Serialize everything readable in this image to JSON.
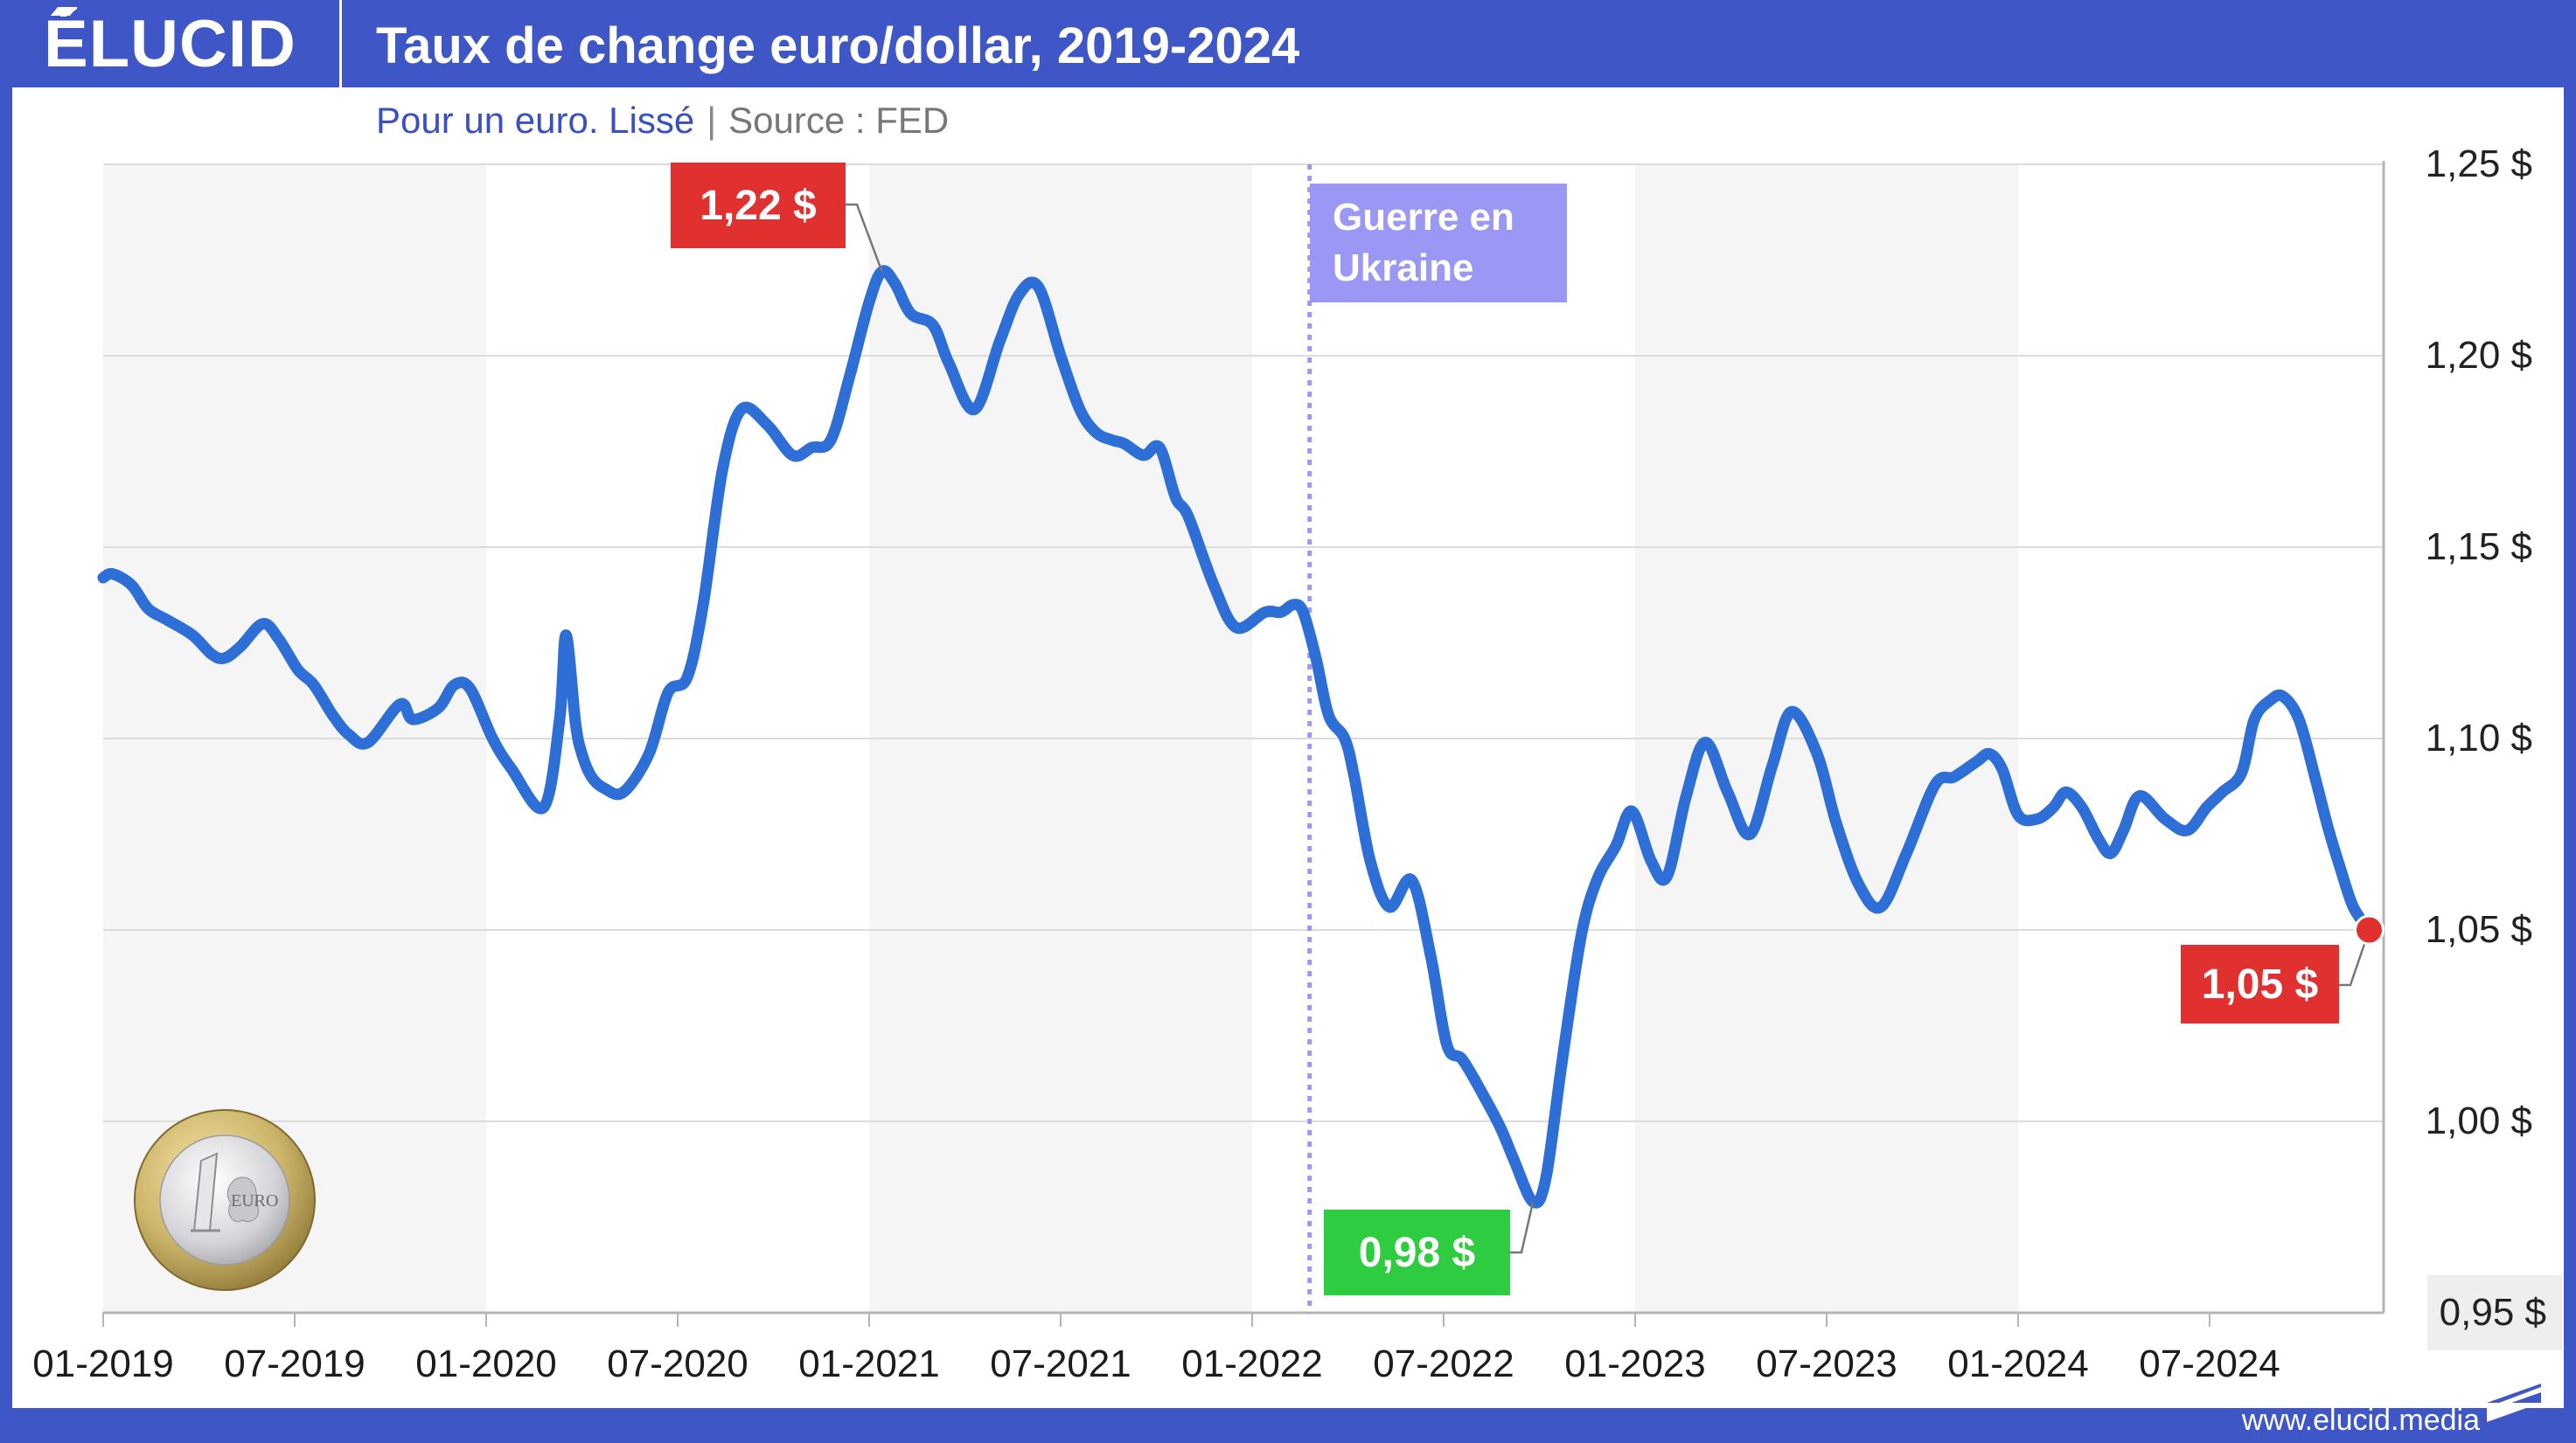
{
  "header": {
    "logo": "ÉLUCID",
    "title": "Taux de change euro/dollar, 2019-2024",
    "subtitle_main": "Pour un euro. Lissé",
    "subtitle_separator": "|",
    "subtitle_source": "Source : FED"
  },
  "footer": {
    "url": "www.elucid.media"
  },
  "colors": {
    "brand": "#3f57c6",
    "line": "#2d6fd6",
    "max_label": "#e03030",
    "min_label": "#2ecc40",
    "event_label": "#9b97f5",
    "band": "#f5f5f5"
  },
  "icons": {
    "coin": "euro-coin-icon",
    "logo_mark": "elucid-flag-icon"
  },
  "chart_data": {
    "type": "line",
    "title": "Taux de change euro/dollar, 2019-2024",
    "subtitle": "Pour un euro. Lissé | Source : FED",
    "xlabel": "",
    "ylabel": "",
    "x_unit": "months since 01-2019",
    "xlim": [
      0,
      71
    ],
    "ylim": [
      0.95,
      1.25
    ],
    "grid": true,
    "legend": "none",
    "x_ticks": [
      {
        "m": 0,
        "label": "01-2019"
      },
      {
        "m": 6,
        "label": "07-2019"
      },
      {
        "m": 12,
        "label": "01-2020"
      },
      {
        "m": 18,
        "label": "07-2020"
      },
      {
        "m": 24,
        "label": "01-2021"
      },
      {
        "m": 30,
        "label": "07-2021"
      },
      {
        "m": 36,
        "label": "01-2022"
      },
      {
        "m": 42,
        "label": "07-2022"
      },
      {
        "m": 48,
        "label": "01-2023"
      },
      {
        "m": 54,
        "label": "07-2023"
      },
      {
        "m": 60,
        "label": "01-2024"
      },
      {
        "m": 66,
        "label": "07-2024"
      }
    ],
    "y_ticks": [
      {
        "v": 1.25,
        "label": "1,25 $"
      },
      {
        "v": 1.2,
        "label": "1,20 $"
      },
      {
        "v": 1.15,
        "label": "1,15 $"
      },
      {
        "v": 1.1,
        "label": "1,10 $"
      },
      {
        "v": 1.05,
        "label": "1,05 $"
      },
      {
        "v": 1.0,
        "label": "1,00 $"
      },
      {
        "v": 0.95,
        "label": "0,95 $"
      }
    ],
    "series": [
      {
        "name": "EUR/USD",
        "x": [
          0,
          0.3,
          0.9,
          1.4,
          2.0,
          2.8,
          3.4,
          3.8,
          4.3,
          5.0,
          5.5,
          6.1,
          6.6,
          7.2,
          7.7,
          8.3,
          9.3,
          9.7,
          10.5,
          11.0,
          11.5,
          12.2,
          12.8,
          13.8,
          14.3,
          14.5,
          14.8,
          15.0,
          15.3,
          15.7,
          16.3,
          17.1,
          17.7,
          18.3,
          18.8,
          19.4,
          20.0,
          20.8,
          21.6,
          22.2,
          22.8,
          23.4,
          24.0,
          24.4,
          24.8,
          25.3,
          26.0,
          26.5,
          27.3,
          28.1,
          28.7,
          29.3,
          30.0,
          30.6,
          31.1,
          31.6,
          32.0,
          32.6,
          33.1,
          33.6,
          34.0,
          34.8,
          35.5,
          36.4,
          36.9,
          37.3,
          37.6,
          38.0,
          38.4,
          38.9,
          39.2,
          39.7,
          40.3,
          41.0,
          41.6,
          42.1,
          42.6,
          43.3,
          43.8,
          44.2,
          44.8,
          45.2,
          45.7,
          46.3,
          46.8,
          47.4,
          47.9,
          48.5,
          49.0,
          49.6,
          50.2,
          50.9,
          51.6,
          52.3,
          52.9,
          53.7,
          54.3,
          55.0,
          55.7,
          56.5,
          57.4,
          58.0,
          58.7,
          59.1,
          59.5,
          60.0,
          60.6,
          61.1,
          61.5,
          62.0,
          62.5,
          62.9,
          63.3,
          63.8,
          64.6,
          65.3,
          65.9,
          66.4,
          67.0,
          67.4,
          67.9,
          68.3,
          68.8,
          69.3,
          69.7,
          70.1,
          70.5,
          71.0
        ],
        "values": [
          1.142,
          1.143,
          1.14,
          1.134,
          1.131,
          1.127,
          1.122,
          1.121,
          1.124,
          1.13,
          1.126,
          1.118,
          1.114,
          1.106,
          1.101,
          1.099,
          1.109,
          1.105,
          1.108,
          1.114,
          1.113,
          1.1,
          1.092,
          1.082,
          1.105,
          1.127,
          1.104,
          1.096,
          1.09,
          1.087,
          1.086,
          1.096,
          1.112,
          1.116,
          1.135,
          1.17,
          1.186,
          1.182,
          1.174,
          1.176,
          1.178,
          1.195,
          1.214,
          1.222,
          1.219,
          1.211,
          1.208,
          1.198,
          1.186,
          1.204,
          1.216,
          1.218,
          1.2,
          1.186,
          1.18,
          1.178,
          1.177,
          1.174,
          1.176,
          1.163,
          1.158,
          1.14,
          1.129,
          1.133,
          1.133,
          1.135,
          1.133,
          1.121,
          1.106,
          1.1,
          1.09,
          1.068,
          1.056,
          1.063,
          1.043,
          1.02,
          1.016,
          1.006,
          0.998,
          0.99,
          0.979,
          0.985,
          1.015,
          1.048,
          1.063,
          1.072,
          1.081,
          1.068,
          1.064,
          1.085,
          1.099,
          1.086,
          1.075,
          1.093,
          1.107,
          1.096,
          1.078,
          1.062,
          1.056,
          1.07,
          1.088,
          1.09,
          1.094,
          1.096,
          1.092,
          1.08,
          1.079,
          1.082,
          1.086,
          1.082,
          1.074,
          1.07,
          1.076,
          1.085,
          1.079,
          1.076,
          1.082,
          1.086,
          1.091,
          1.105,
          1.11,
          1.111,
          1.105,
          1.09,
          1.077,
          1.066,
          1.056,
          1.05
        ]
      }
    ],
    "annotations": [
      {
        "type": "max",
        "m": 24.4,
        "v": 1.222,
        "label": "1,22 $"
      },
      {
        "type": "min",
        "m": 44.8,
        "v": 0.979,
        "label": "0,98 $"
      },
      {
        "type": "last",
        "m": 71.0,
        "v": 1.05,
        "label": "1,05 $"
      },
      {
        "type": "event",
        "m": 37.8,
        "label_line1": "Guerre en",
        "label_line2": "Ukraine"
      }
    ],
    "shaded_bands_years": [
      "2019",
      "2021",
      "2023"
    ]
  }
}
